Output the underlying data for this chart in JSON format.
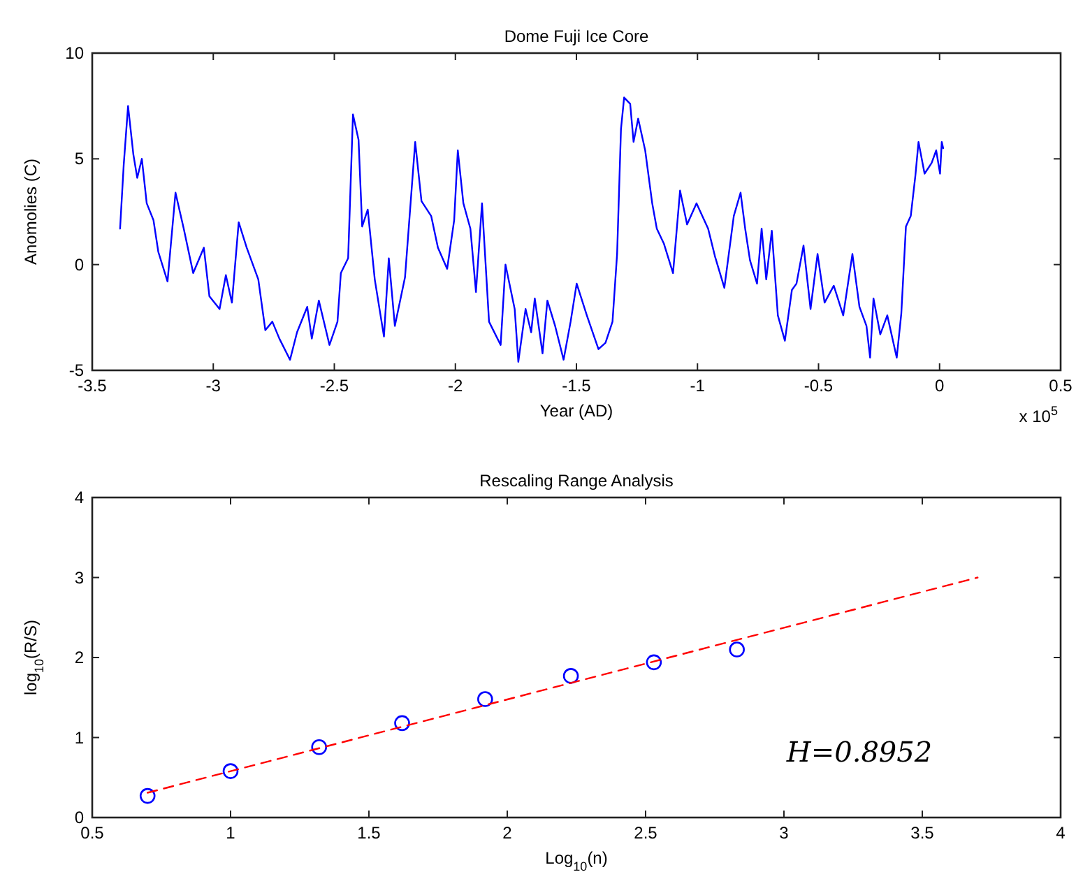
{
  "chart_data": [
    {
      "type": "line",
      "title": "Dome Fuji Ice Core",
      "xlabel": "Year (AD)",
      "ylabel": "Anomolies (C)",
      "annotations": [
        "x 10$^{5}$"
      ],
      "xlim": [
        -3.5,
        0.5
      ],
      "xticks": [
        -3.5,
        -3,
        -2.5,
        -2,
        -1.5,
        -1,
        -0.5,
        0,
        0.5
      ],
      "ylim": [
        -5,
        10
      ],
      "yticks": [
        -5,
        0,
        5,
        10
      ],
      "grid": false,
      "series": [
        {
          "color": "#0000ff",
          "line_style": "solid",
          "x": [
            -3.385,
            -3.37,
            -3.352,
            -3.33,
            -3.314,
            -3.295,
            -3.275,
            -3.247,
            -3.227,
            -3.189,
            -3.156,
            -3.122,
            -3.083,
            -3.039,
            -3.016,
            -2.974,
            -2.948,
            -2.923,
            -2.895,
            -2.862,
            -2.814,
            -2.785,
            -2.756,
            -2.727,
            -2.683,
            -2.654,
            -2.612,
            -2.593,
            -2.564,
            -2.52,
            -2.487,
            -2.473,
            -2.443,
            -2.423,
            -2.4,
            -2.385,
            -2.362,
            -2.333,
            -2.295,
            -2.275,
            -2.25,
            -2.208,
            -2.166,
            -2.14,
            -2.1,
            -2.072,
            -2.034,
            -2.005,
            -1.99,
            -1.967,
            -1.938,
            -1.915,
            -1.89,
            -1.861,
            -1.813,
            -1.793,
            -1.755,
            -1.74,
            -1.71,
            -1.687,
            -1.672,
            -1.64,
            -1.62,
            -1.588,
            -1.553,
            -1.524,
            -1.499,
            -1.457,
            -1.409,
            -1.38,
            -1.351,
            -1.332,
            -1.316,
            -1.303,
            -1.278,
            -1.264,
            -1.245,
            -1.216,
            -1.187,
            -1.168,
            -1.139,
            -1.101,
            -1.072,
            -1.043,
            -1.004,
            -0.956,
            -0.928,
            -0.889,
            -0.85,
            -0.822,
            -0.803,
            -0.783,
            -0.754,
            -0.735,
            -0.716,
            -0.693,
            -0.668,
            -0.639,
            -0.61,
            -0.591,
            -0.562,
            -0.533,
            -0.504,
            -0.475,
            -0.437,
            -0.398,
            -0.36,
            -0.331,
            -0.302,
            -0.287,
            -0.273,
            -0.245,
            -0.216,
            -0.177,
            -0.158,
            -0.139,
            -0.119,
            -0.1,
            -0.087,
            -0.062,
            -0.033,
            -0.014,
            0.002,
            0.009,
            0.015
          ],
          "values": [
            1.7,
            4.7,
            7.5,
            5.2,
            4.1,
            5,
            2.9,
            2.1,
            0.6,
            -0.8,
            3.4,
            1.7,
            -0.4,
            0.8,
            -1.5,
            -2.1,
            -0.5,
            -1.8,
            2,
            0.8,
            -0.7,
            -3.1,
            -2.7,
            -3.5,
            -4.5,
            -3.2,
            -2,
            -3.5,
            -1.7,
            -3.8,
            -2.7,
            -0.4,
            0.3,
            7.1,
            5.9,
            1.8,
            2.6,
            -0.7,
            -3.4,
            0.3,
            -2.9,
            -0.6,
            5.8,
            3,
            2.3,
            0.8,
            -0.2,
            2.1,
            5.4,
            2.9,
            1.7,
            -1.3,
            2.9,
            -2.7,
            -3.8,
            0,
            -2.1,
            -4.6,
            -2.1,
            -3.2,
            -1.6,
            -4.2,
            -1.7,
            -2.9,
            -4.5,
            -2.7,
            -0.9,
            -2.4,
            -4,
            -3.7,
            -2.7,
            0.5,
            6.4,
            7.9,
            7.6,
            5.8,
            6.9,
            5.4,
            2.9,
            1.7,
            1,
            -0.4,
            3.5,
            1.9,
            2.9,
            1.7,
            0.4,
            -1.1,
            2.3,
            3.4,
            1.7,
            0.2,
            -0.9,
            1.7,
            -0.7,
            1.6,
            -2.4,
            -3.6,
            -1.2,
            -0.9,
            0.9,
            -2.1,
            0.5,
            -1.8,
            -1,
            -2.4,
            0.5,
            -2,
            -2.9,
            -4.4,
            -1.6,
            -3.3,
            -2.4,
            -4.4,
            -2.3,
            1.8,
            2.3,
            4.2,
            5.8,
            4.3,
            4.8,
            5.4,
            4.3,
            5.8,
            5.5
          ]
        }
      ]
    },
    {
      "type": "scatter",
      "title": "Rescaling Range Analysis",
      "xlabel": "Log$_{10}$(n)",
      "ylabel": "log$_{10}$(R/S)",
      "annotations": [
        "H=0.8952"
      ],
      "xlim": [
        0.5,
        4
      ],
      "xticks": [
        0.5,
        1,
        1.5,
        2,
        2.5,
        3,
        3.5,
        4
      ],
      "ylim": [
        0,
        4
      ],
      "yticks": [
        0,
        1,
        2,
        3,
        4
      ],
      "grid": false,
      "series": [
        {
          "color": "#0000ff",
          "marker": "circle",
          "x": [
            0.7,
            1.0,
            1.32,
            1.62,
            1.92,
            2.23,
            2.53,
            2.83
          ],
          "values": [
            0.27,
            0.58,
            0.88,
            1.18,
            1.48,
            1.77,
            1.94,
            2.1
          ]
        },
        {
          "type": "line",
          "color": "#ff0000",
          "line_style": "dashed",
          "x": [
            0.7,
            3.7
          ],
          "values": [
            0.31,
            3.0
          ]
        }
      ]
    }
  ]
}
